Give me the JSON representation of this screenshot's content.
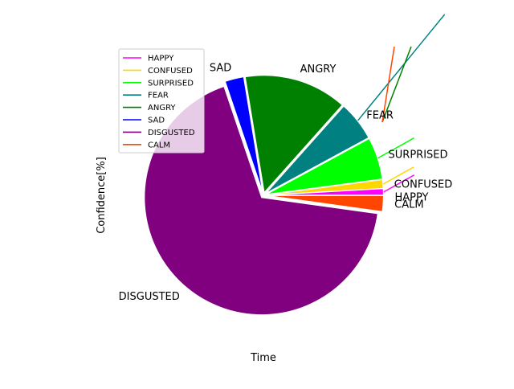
{
  "chart_data": {
    "type": "pie",
    "title": "",
    "xlabel": "Time",
    "ylabel": "Confidence[%]",
    "legend": {
      "placement": "top-left",
      "entries": [
        "HAPPY",
        "CONFUSED",
        "SURPRISED",
        "FEAR",
        "ANGRY",
        "SAD",
        "DISGUSTED",
        "CALM"
      ]
    },
    "slices": [
      {
        "label": "HAPPY",
        "value": 0.9,
        "color": "#ff00ff"
      },
      {
        "label": "CONFUSED",
        "value": 1.2,
        "color": "#ffd700"
      },
      {
        "label": "SURPRISED",
        "value": 5.8,
        "color": "#00ff00"
      },
      {
        "label": "FEAR",
        "value": 5.5,
        "color": "#008080"
      },
      {
        "label": "ANGRY",
        "value": 14.2,
        "color": "#008000"
      },
      {
        "label": "SAD",
        "value": 2.6,
        "color": "#0000ff"
      },
      {
        "label": "DISGUSTED",
        "value": 67.6,
        "color": "#800080"
      },
      {
        "label": "CALM",
        "value": 2.2,
        "color": "#ff4500"
      }
    ]
  }
}
